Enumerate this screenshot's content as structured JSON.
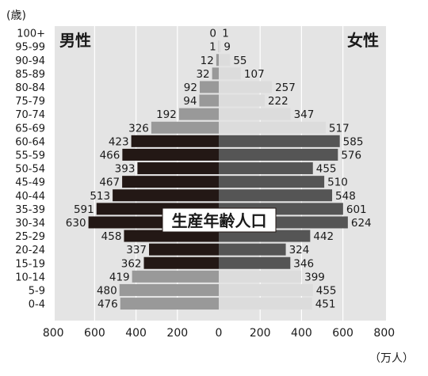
{
  "chart_data": {
    "type": "bar",
    "y_axis_unit": "(歳)",
    "x_axis_unit": "（万人）",
    "left_title": "男性",
    "right_title": "女性",
    "annotation": "生産年齢人口",
    "categories": [
      "100+",
      "95-99",
      "90-94",
      "85-89",
      "80-84",
      "75-79",
      "70-74",
      "65-69",
      "60-64",
      "55-59",
      "50-54",
      "45-49",
      "40-44",
      "35-39",
      "30-34",
      "25-29",
      "20-24",
      "15-19",
      "10-14",
      "5-9",
      "0-4"
    ],
    "series": [
      {
        "name": "男性",
        "values": [
          0,
          1,
          12,
          32,
          92,
          94,
          192,
          326,
          423,
          466,
          393,
          467,
          513,
          591,
          630,
          458,
          337,
          362,
          419,
          480,
          476
        ]
      },
      {
        "name": "女性",
        "values": [
          1,
          9,
          55,
          107,
          257,
          222,
          347,
          517,
          585,
          576,
          455,
          510,
          548,
          601,
          624,
          442,
          324,
          346,
          399,
          455,
          451
        ]
      }
    ],
    "xlim": [
      -800,
      800
    ],
    "x_ticks": [
      "800",
      "600",
      "400",
      "200",
      "0",
      "200",
      "400",
      "600",
      "800"
    ],
    "working_age_groups": [
      "60-64",
      "55-59",
      "50-54",
      "45-49",
      "40-44",
      "35-39",
      "30-34",
      "25-29",
      "20-24",
      "15-19"
    ],
    "colors": {
      "plot_bg": "#e4e4e4",
      "grid": "#ffffff",
      "male_other": "#999999",
      "male_working": "#231815",
      "female_other": "#dcdcdc",
      "female_working": "#555555"
    }
  }
}
